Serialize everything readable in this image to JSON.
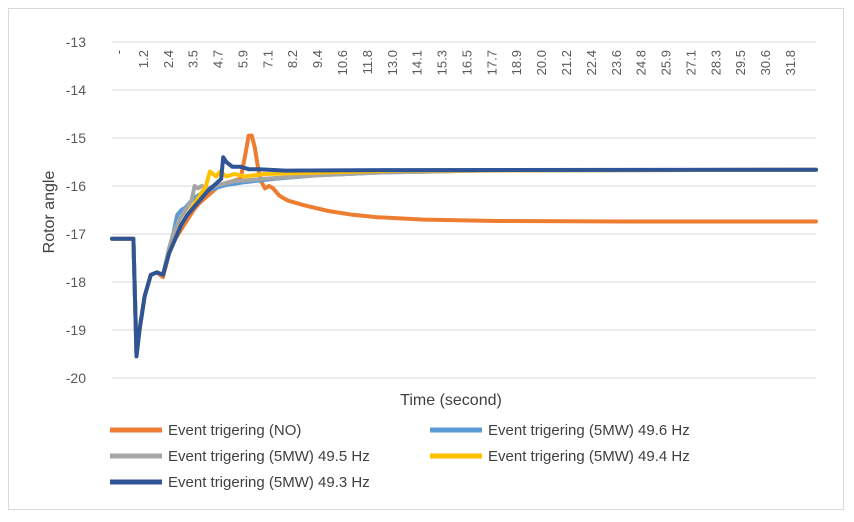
{
  "chart_data": {
    "type": "line",
    "title": "",
    "xlabel": "Time (second)",
    "ylabel": "Rotor angle",
    "ylim": [
      -20,
      -13
    ],
    "yticks": [
      "-13",
      "-14",
      "-15",
      "-16",
      "-17",
      "-18",
      "-19",
      "-20"
    ],
    "xlim": [
      0,
      34.5
    ],
    "xticks": [
      "-",
      "1.2",
      "2.4",
      "3.5",
      "4.7",
      "5.9",
      "7.1",
      "8.2",
      "9.4",
      "10.6",
      "11.8",
      "13.0",
      "14.1",
      "15.3",
      "16.5",
      "17.7",
      "18.9",
      "20.0",
      "21.2",
      "22.4",
      "23.6",
      "24.8",
      "25.9",
      "27.1",
      "28.3",
      "29.5",
      "30.6",
      "31.8"
    ],
    "grid": "horizontal",
    "legend_position": "bottom",
    "series": [
      {
        "name": "Event trigering (NO)",
        "color": "#ED7D31",
        "points": [
          [
            0,
            -17.1
          ],
          [
            0.9,
            -17.1
          ],
          [
            1.05,
            -17.1
          ],
          [
            1.2,
            -19.5
          ],
          [
            1.35,
            -19.0
          ],
          [
            1.6,
            -18.3
          ],
          [
            1.9,
            -17.85
          ],
          [
            2.2,
            -17.8
          ],
          [
            2.5,
            -17.9
          ],
          [
            2.8,
            -17.4
          ],
          [
            3.1,
            -17.1
          ],
          [
            3.4,
            -16.9
          ],
          [
            3.7,
            -16.7
          ],
          [
            4.0,
            -16.5
          ],
          [
            4.3,
            -16.35
          ],
          [
            4.7,
            -16.2
          ],
          [
            5.1,
            -16.05
          ],
          [
            5.5,
            -15.95
          ],
          [
            5.9,
            -15.9
          ],
          [
            6.3,
            -15.85
          ],
          [
            6.55,
            -15.3
          ],
          [
            6.7,
            -14.95
          ],
          [
            6.85,
            -14.95
          ],
          [
            7.0,
            -15.2
          ],
          [
            7.15,
            -15.6
          ],
          [
            7.3,
            -15.9
          ],
          [
            7.5,
            -16.05
          ],
          [
            7.7,
            -16.0
          ],
          [
            7.9,
            -16.05
          ],
          [
            8.2,
            -16.2
          ],
          [
            8.6,
            -16.3
          ],
          [
            9.4,
            -16.4
          ],
          [
            10.6,
            -16.52
          ],
          [
            11.8,
            -16.6
          ],
          [
            13.0,
            -16.65
          ],
          [
            15.3,
            -16.7
          ],
          [
            18.9,
            -16.73
          ],
          [
            25.0,
            -16.74
          ],
          [
            34.5,
            -16.74
          ]
        ]
      },
      {
        "name": "Event trigering (5MW) 49.6 Hz",
        "color": "#5B9BD5",
        "points": [
          [
            0,
            -17.1
          ],
          [
            0.9,
            -17.1
          ],
          [
            1.05,
            -17.1
          ],
          [
            1.2,
            -19.5
          ],
          [
            1.35,
            -19.0
          ],
          [
            1.6,
            -18.3
          ],
          [
            1.9,
            -17.85
          ],
          [
            2.2,
            -17.8
          ],
          [
            2.5,
            -17.85
          ],
          [
            2.8,
            -17.3
          ],
          [
            3.0,
            -17.0
          ],
          [
            3.2,
            -16.6
          ],
          [
            3.4,
            -16.5
          ],
          [
            3.6,
            -16.45
          ],
          [
            3.9,
            -16.3
          ],
          [
            4.2,
            -16.2
          ],
          [
            4.6,
            -16.1
          ],
          [
            5.0,
            -16.05
          ],
          [
            5.6,
            -15.98
          ],
          [
            6.5,
            -15.92
          ],
          [
            8.0,
            -15.85
          ],
          [
            10.0,
            -15.78
          ],
          [
            13.0,
            -15.72
          ],
          [
            18.0,
            -15.68
          ],
          [
            34.5,
            -15.66
          ]
        ]
      },
      {
        "name": "Event trigering (5MW) 49.5 Hz",
        "color": "#A5A5A5",
        "points": [
          [
            0,
            -17.1
          ],
          [
            0.9,
            -17.1
          ],
          [
            1.05,
            -17.1
          ],
          [
            1.2,
            -19.5
          ],
          [
            1.35,
            -19.0
          ],
          [
            1.6,
            -18.3
          ],
          [
            1.9,
            -17.85
          ],
          [
            2.2,
            -17.8
          ],
          [
            2.5,
            -17.85
          ],
          [
            2.8,
            -17.3
          ],
          [
            3.0,
            -17.0
          ],
          [
            3.3,
            -16.7
          ],
          [
            3.6,
            -16.5
          ],
          [
            3.9,
            -16.3
          ],
          [
            4.05,
            -16.0
          ],
          [
            4.2,
            -16.05
          ],
          [
            4.4,
            -16.0
          ],
          [
            4.7,
            -16.05
          ],
          [
            5.2,
            -15.98
          ],
          [
            6.0,
            -15.9
          ],
          [
            7.5,
            -15.85
          ],
          [
            10.0,
            -15.78
          ],
          [
            13.0,
            -15.72
          ],
          [
            18.0,
            -15.68
          ],
          [
            34.5,
            -15.66
          ]
        ]
      },
      {
        "name": "Event trigering (5MW) 49.4 Hz",
        "color": "#FFC000",
        "points": [
          [
            0,
            -17.1
          ],
          [
            0.9,
            -17.1
          ],
          [
            1.05,
            -17.1
          ],
          [
            1.2,
            -19.5
          ],
          [
            1.35,
            -19.0
          ],
          [
            1.6,
            -18.3
          ],
          [
            1.9,
            -17.85
          ],
          [
            2.2,
            -17.8
          ],
          [
            2.5,
            -17.85
          ],
          [
            2.8,
            -17.4
          ],
          [
            3.1,
            -17.1
          ],
          [
            3.4,
            -16.8
          ],
          [
            3.7,
            -16.6
          ],
          [
            4.0,
            -16.4
          ],
          [
            4.3,
            -16.2
          ],
          [
            4.6,
            -16.0
          ],
          [
            4.8,
            -15.7
          ],
          [
            4.95,
            -15.75
          ],
          [
            5.1,
            -15.8
          ],
          [
            5.3,
            -15.7
          ],
          [
            5.6,
            -15.8
          ],
          [
            6.0,
            -15.75
          ],
          [
            6.5,
            -15.8
          ],
          [
            7.5,
            -15.75
          ],
          [
            10.0,
            -15.72
          ],
          [
            14.0,
            -15.68
          ],
          [
            34.5,
            -15.66
          ]
        ]
      },
      {
        "name": "Event trigering (5MW) 49.3 Hz",
        "color": "#2F5597",
        "points": [
          [
            0,
            -17.1
          ],
          [
            0.9,
            -17.1
          ],
          [
            1.05,
            -17.1
          ],
          [
            1.2,
            -19.55
          ],
          [
            1.35,
            -19.0
          ],
          [
            1.6,
            -18.3
          ],
          [
            1.9,
            -17.85
          ],
          [
            2.2,
            -17.8
          ],
          [
            2.5,
            -17.85
          ],
          [
            2.8,
            -17.4
          ],
          [
            3.1,
            -17.1
          ],
          [
            3.4,
            -16.8
          ],
          [
            3.7,
            -16.6
          ],
          [
            4.0,
            -16.45
          ],
          [
            4.3,
            -16.3
          ],
          [
            4.7,
            -16.1
          ],
          [
            5.1,
            -15.95
          ],
          [
            5.35,
            -15.85
          ],
          [
            5.45,
            -15.4
          ],
          [
            5.6,
            -15.5
          ],
          [
            5.9,
            -15.6
          ],
          [
            6.3,
            -15.6
          ],
          [
            6.7,
            -15.65
          ],
          [
            7.2,
            -15.65
          ],
          [
            8.5,
            -15.68
          ],
          [
            12.0,
            -15.67
          ],
          [
            34.5,
            -15.66
          ]
        ]
      }
    ]
  }
}
